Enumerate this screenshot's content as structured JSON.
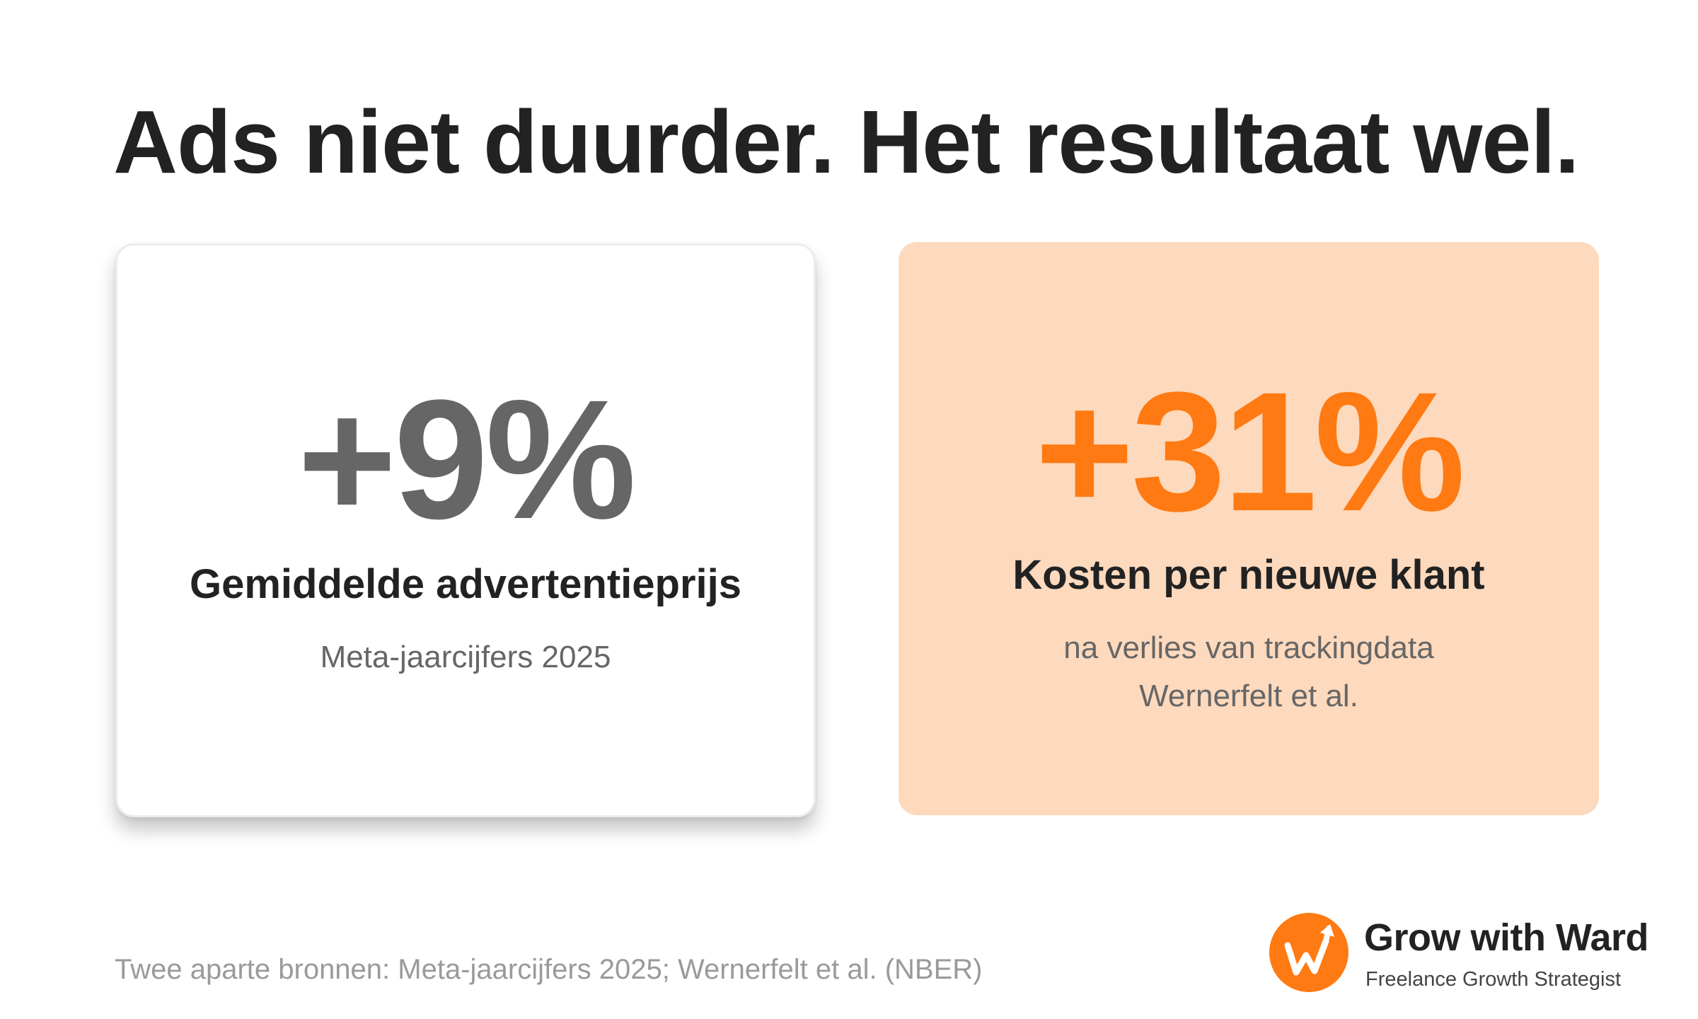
{
  "headline": "Ads niet duurder. Het resultaat wel.",
  "cards": [
    {
      "value": "+9%",
      "label": "Gemiddelde advertentieprijs",
      "sublines": [
        "Meta-jaarcijfers 2025"
      ]
    },
    {
      "value": "+31%",
      "label": "Kosten per nieuwe klant",
      "sublines": [
        "na verlies van trackingdata",
        "Wernerfelt et al."
      ]
    }
  ],
  "footnote": "Twee aparte bronnen: Meta-jaarcijfers 2025; Wernerfelt et al. (NBER)",
  "brand": {
    "name": "Grow with Ward",
    "tagline": "Freelance Growth Strategist",
    "logo_icon": "growth-arrow-w-logo-icon",
    "logo_color": "#ff7a12"
  },
  "colors": {
    "accent": "#ff7a12",
    "highlight_card_bg": "#fdd9bd",
    "neutral_value": "#666666",
    "text": "#222222",
    "muted": "#9a9a9a"
  }
}
